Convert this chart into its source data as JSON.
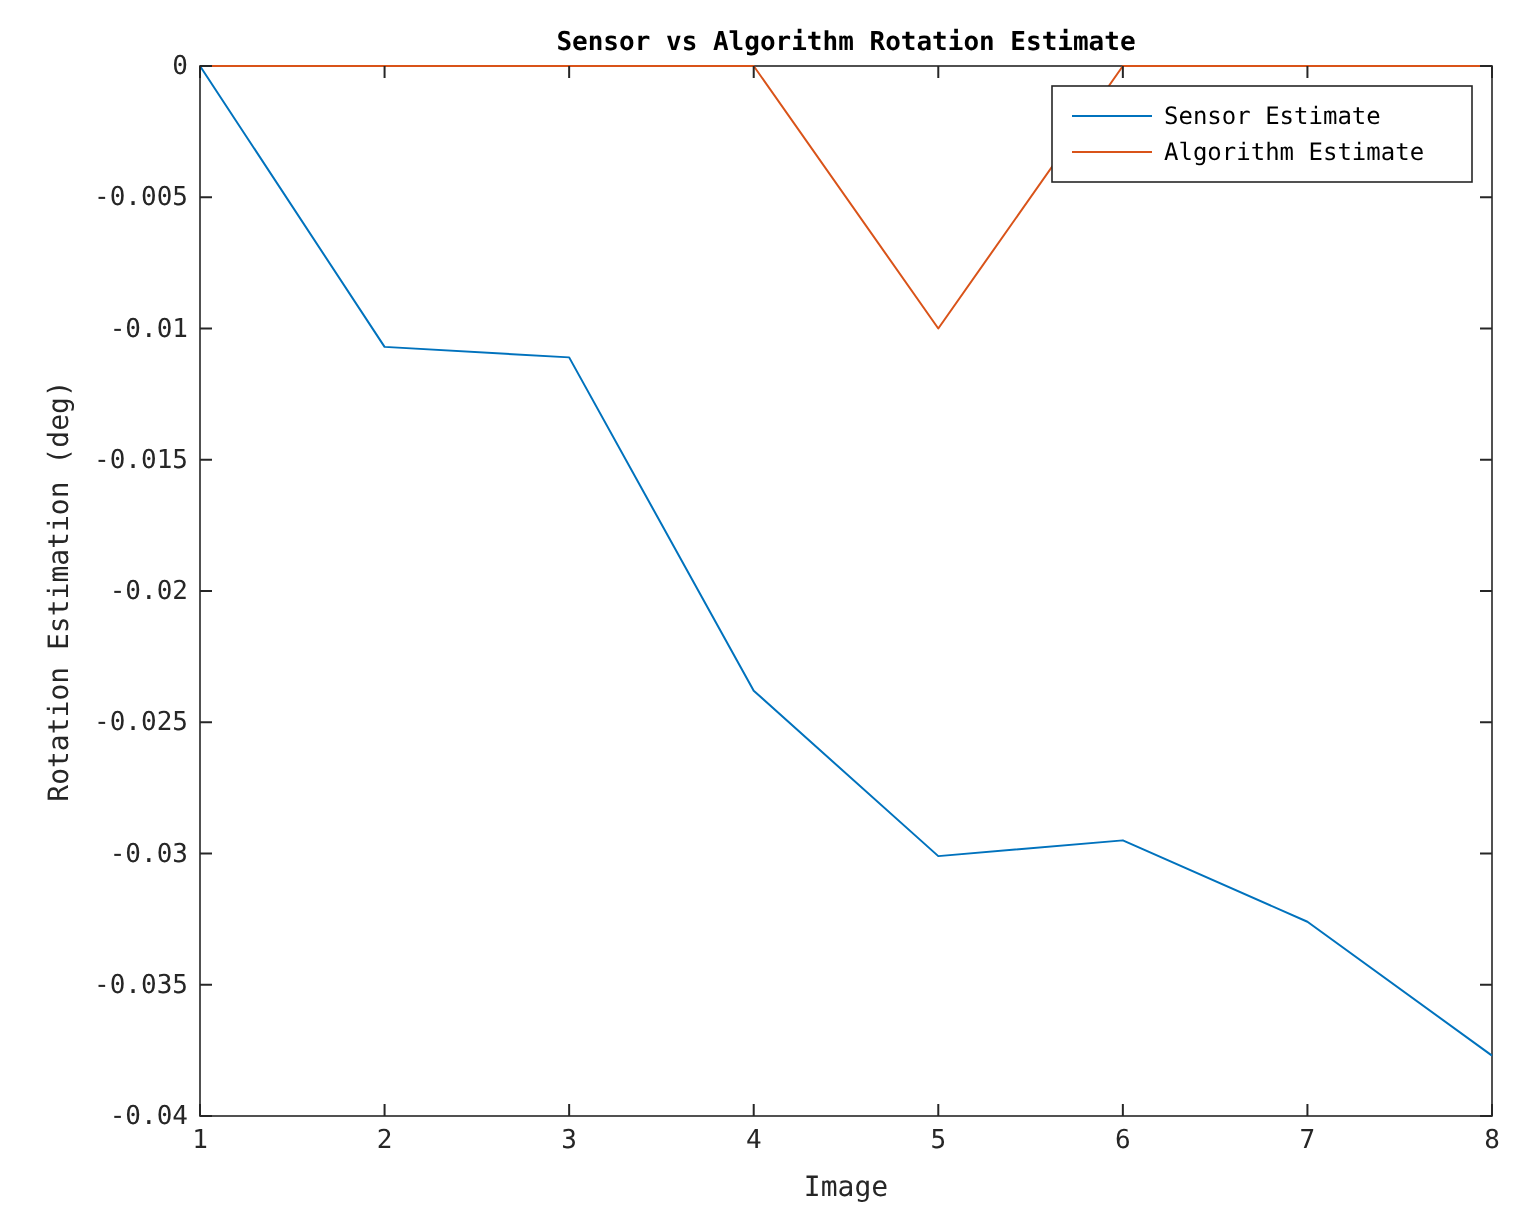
{
  "chart_data": {
    "type": "line",
    "title": "Sensor vs Algorithm Rotation Estimate",
    "xlabel": "Image",
    "ylabel": "Rotation Estimation (deg)",
    "x": [
      1,
      2,
      3,
      4,
      5,
      6,
      7,
      8
    ],
    "series": [
      {
        "name": "Sensor Estimate",
        "color": "#0072bd",
        "values": [
          0,
          -0.0107,
          -0.0111,
          -0.0238,
          -0.0301,
          -0.0295,
          -0.0326,
          -0.0377
        ]
      },
      {
        "name": "Algorithm Estimate",
        "color": "#d95319",
        "values": [
          0,
          0,
          0,
          0,
          -0.01,
          0,
          0,
          0
        ]
      }
    ],
    "xlim": [
      1,
      8
    ],
    "ylim": [
      -0.04,
      0
    ],
    "xticks": [
      1,
      2,
      3,
      4,
      5,
      6,
      7,
      8
    ],
    "yticks": [
      -0.04,
      -0.035,
      -0.03,
      -0.025,
      -0.02,
      -0.015,
      -0.01,
      -0.005,
      0
    ],
    "grid": false,
    "legend": "top right",
    "marker": "none",
    "line_style": "solid"
  }
}
